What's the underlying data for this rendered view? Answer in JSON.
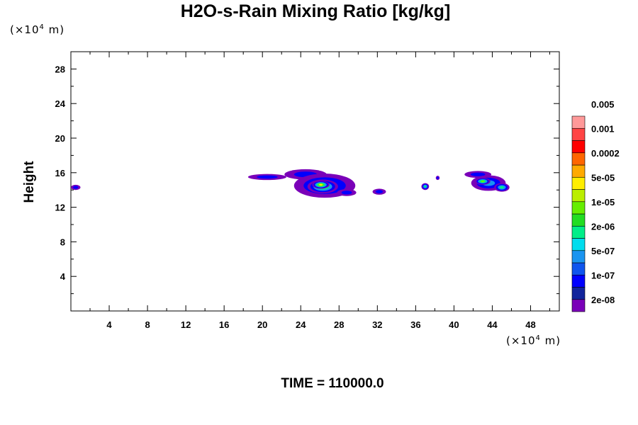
{
  "chart_data": {
    "type": "heatmap",
    "title": "H2O-s-Rain Mixing Ratio [kg/kg]",
    "ylabel": "Height",
    "y_unit": {
      "prefix": "(×10",
      "exp": "4",
      "suffix": " m)"
    },
    "x_unit": {
      "prefix": "(×10",
      "exp": "4",
      "suffix": " m)"
    },
    "xlim": [
      0,
      51
    ],
    "ylim": [
      0,
      30
    ],
    "x_ticks": [
      4,
      8,
      12,
      16,
      20,
      24,
      28,
      32,
      36,
      40,
      44,
      48
    ],
    "y_ticks": [
      4,
      8,
      12,
      16,
      20,
      24,
      28
    ],
    "legend": {
      "placement": "right",
      "levels": [
        "2e-08",
        "1e-07",
        "5e-07",
        "2e-06",
        "1e-05",
        "5e-05",
        "0.0002",
        "0.001",
        "0.005"
      ],
      "colors": [
        "#7a00b8",
        "#12249c",
        "#0000ff",
        "#0f55ee",
        "#1a94f0",
        "#00ddee",
        "#00ee88",
        "#22dd22",
        "#66ee00",
        "#bbee00",
        "#ffee00",
        "#ffaa00",
        "#ff6600",
        "#ff0000",
        "#ff4444",
        "#ff9999"
      ]
    },
    "features": [
      {
        "name": "cloud-left-edge",
        "x": 0.5,
        "y": 14.3,
        "rx": 0.5,
        "ry": 0.3,
        "level": 0
      },
      {
        "name": "cloud-main-tail",
        "x": 20.5,
        "y": 15.5,
        "rx": 2.0,
        "ry": 0.35,
        "level": 0
      },
      {
        "name": "cloud-main-upper",
        "x": 24.5,
        "y": 15.8,
        "rx": 2.2,
        "ry": 0.6,
        "level": 0
      },
      {
        "name": "cloud-main-body",
        "x": 26.5,
        "y": 14.5,
        "rx": 3.2,
        "ry": 1.4,
        "level": 1
      },
      {
        "name": "cloud-main-core",
        "x": 26.3,
        "y": 14.4,
        "rx": 1.6,
        "ry": 0.8,
        "level": 3
      },
      {
        "name": "cloud-main-peak",
        "x": 26.1,
        "y": 14.6,
        "rx": 0.9,
        "ry": 0.45,
        "level": 4
      },
      {
        "name": "cloud-main-right",
        "x": 28.8,
        "y": 13.7,
        "rx": 1.0,
        "ry": 0.4,
        "level": 0
      },
      {
        "name": "cloud-small-32",
        "x": 32.2,
        "y": 13.8,
        "rx": 0.7,
        "ry": 0.35,
        "level": 0
      },
      {
        "name": "cloud-dot-37",
        "x": 37.0,
        "y": 14.4,
        "rx": 0.4,
        "ry": 0.4,
        "level": 2
      },
      {
        "name": "cloud-dot-38",
        "x": 38.3,
        "y": 15.4,
        "rx": 0.2,
        "ry": 0.25,
        "level": 0
      },
      {
        "name": "cloud-right-upper",
        "x": 42.5,
        "y": 15.8,
        "rx": 1.4,
        "ry": 0.4,
        "level": 0
      },
      {
        "name": "cloud-right-body",
        "x": 43.6,
        "y": 14.8,
        "rx": 1.8,
        "ry": 0.9,
        "level": 1
      },
      {
        "name": "cloud-right-core",
        "x": 43.0,
        "y": 15.0,
        "rx": 0.8,
        "ry": 0.4,
        "level": 3
      },
      {
        "name": "cloud-right-tail",
        "x": 45.0,
        "y": 14.3,
        "rx": 0.8,
        "ry": 0.5,
        "level": 2
      }
    ]
  },
  "time": "TIME = 110000.0"
}
